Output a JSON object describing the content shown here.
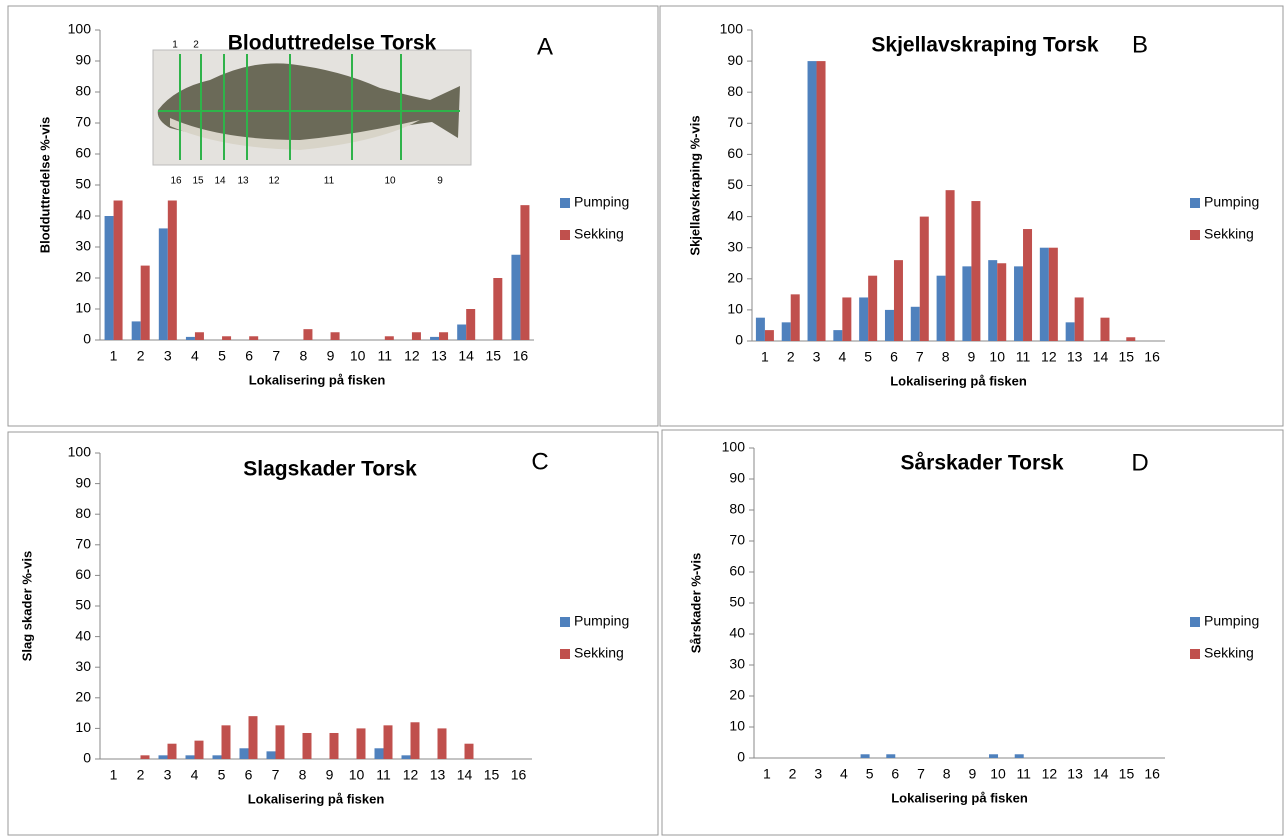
{
  "chart_data": [
    {
      "type": "bar",
      "title": "Bloduttredelse Torsk",
      "panel_label": "A",
      "xlabel": "Lokalisering på fisken",
      "ylabel": "Blodduttredelse %-vis",
      "inset_labels": [
        "1",
        "2",
        "16",
        "15",
        "14",
        "13",
        "12",
        "11",
        "10",
        "9"
      ],
      "categories": [
        1,
        2,
        3,
        4,
        5,
        6,
        7,
        8,
        9,
        10,
        11,
        12,
        13,
        14,
        15,
        16
      ],
      "series": [
        {
          "name": "Pumping",
          "color": "#4f81bd",
          "values": [
            40,
            6,
            36,
            1,
            0,
            0,
            0,
            0,
            0,
            0,
            0,
            0,
            1,
            5,
            0,
            27.5
          ]
        },
        {
          "name": "Sekking",
          "color": "#c0504d",
          "values": [
            45,
            24,
            45,
            2.5,
            1.2,
            1.2,
            0,
            3.5,
            2.5,
            0,
            1.2,
            2.5,
            2.5,
            10,
            20,
            43.5
          ]
        }
      ],
      "ylim": [
        0,
        100
      ],
      "yticks": [
        0,
        10,
        20,
        30,
        40,
        50,
        60,
        70,
        80,
        90,
        100
      ],
      "legend": "right"
    },
    {
      "type": "bar",
      "title": "Skjellavskraping Torsk",
      "panel_label": "B",
      "xlabel": "Lokalisering på fisken",
      "ylabel": "Skjellavskraping %-vis",
      "categories": [
        1,
        2,
        3,
        4,
        5,
        6,
        7,
        8,
        9,
        10,
        11,
        12,
        13,
        14,
        15,
        16
      ],
      "series": [
        {
          "name": "Pumping",
          "color": "#4f81bd",
          "values": [
            7.5,
            6,
            90,
            3.5,
            14,
            10,
            11,
            21,
            24,
            26,
            24,
            30,
            6,
            0,
            0,
            0
          ]
        },
        {
          "name": "Sekking",
          "color": "#c0504d",
          "values": [
            3.5,
            15,
            90,
            14,
            21,
            26,
            40,
            48.5,
            45,
            25,
            36,
            30,
            14,
            7.5,
            1.2,
            0
          ]
        }
      ],
      "ylim": [
        0,
        100
      ],
      "yticks": [
        0,
        10,
        20,
        30,
        40,
        50,
        60,
        70,
        80,
        90,
        100
      ],
      "legend": "right"
    },
    {
      "type": "bar",
      "title": "Slagskader Torsk",
      "panel_label": "C",
      "xlabel": "Lokalisering på fisken",
      "ylabel": "Slag skader %-vis",
      "categories": [
        1,
        2,
        3,
        4,
        5,
        6,
        7,
        8,
        9,
        10,
        11,
        12,
        13,
        14,
        15,
        16
      ],
      "series": [
        {
          "name": "Pumping",
          "color": "#4f81bd",
          "values": [
            0,
            0,
            1.2,
            1.2,
            1.2,
            3.5,
            2.5,
            0,
            0,
            0,
            3.5,
            1.2,
            0,
            0,
            0,
            0
          ]
        },
        {
          "name": "Sekking",
          "color": "#c0504d",
          "values": [
            0,
            1.2,
            5,
            6,
            11,
            14,
            11,
            8.5,
            8.5,
            10,
            11,
            12,
            10,
            5,
            0,
            0
          ]
        }
      ],
      "ylim": [
        0,
        100
      ],
      "yticks": [
        0,
        10,
        20,
        30,
        40,
        50,
        60,
        70,
        80,
        90,
        100
      ],
      "legend": "right"
    },
    {
      "type": "bar",
      "title": "Sårskader Torsk",
      "panel_label": "D",
      "xlabel": "Lokalisering på fisken",
      "ylabel": "Sårskader %-vis",
      "categories": [
        1,
        2,
        3,
        4,
        5,
        6,
        7,
        8,
        9,
        10,
        11,
        12,
        13,
        14,
        15,
        16
      ],
      "series": [
        {
          "name": "Pumping",
          "color": "#4f81bd",
          "values": [
            0,
            0,
            0,
            0,
            1.2,
            1.2,
            0,
            0,
            0,
            1.2,
            1.2,
            0,
            0,
            0,
            0,
            0
          ]
        },
        {
          "name": "Sekking",
          "color": "#c0504d",
          "values": [
            0,
            0,
            0,
            0,
            0,
            0,
            0,
            0,
            0,
            0,
            0,
            0,
            0,
            0,
            0,
            0
          ]
        }
      ],
      "ylim": [
        0,
        100
      ],
      "yticks": [
        0,
        10,
        20,
        30,
        40,
        50,
        60,
        70,
        80,
        90,
        100
      ],
      "legend": "right"
    }
  ]
}
